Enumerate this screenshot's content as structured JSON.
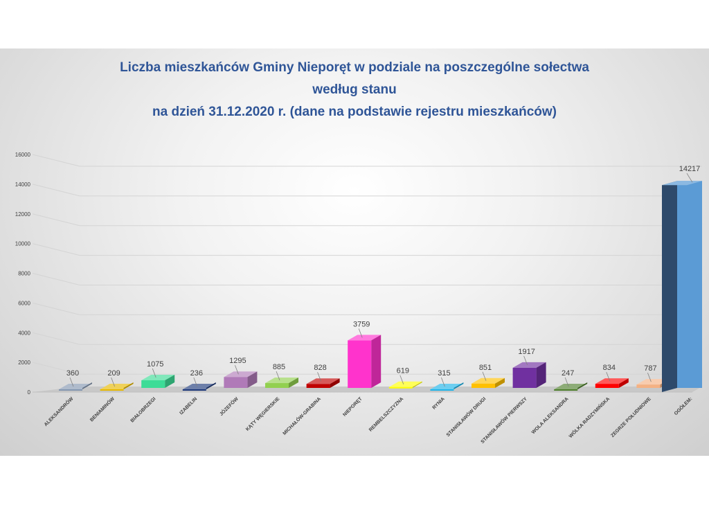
{
  "chart_data": {
    "type": "bar",
    "title_lines": [
      "Liczba mieszkańców Gminy Nieporęt  w podziale na poszczególne sołectwa",
      "według stanu",
      "na dzień 31.12.2020 r. (dane na podstawie rejestru mieszkańców)"
    ],
    "categories": [
      "ALEKSANDRÓW",
      "BENIAMINÓW",
      "BIAŁOBRZEGI",
      "IZABELIN",
      "JÓZEFÓW",
      "KĄTY WĘGIERSKIE",
      "MICHAŁÓW-GRABINA",
      "NIEPORĘT",
      "REMBELSZCZYZNA",
      "RYNIA",
      "STANISŁAWÓW DRUGI",
      "STANISŁAWÓW PIERWSZY",
      "WOLA ALEKSANDRA",
      "WÓLKA RADZYMIŃSKA",
      "ZEGRZE POŁUDNIOWE",
      "OGÓŁEM:"
    ],
    "values": [
      360,
      209,
      1075,
      236,
      1295,
      885,
      828,
      3759,
      619,
      315,
      851,
      1917,
      247,
      834,
      787,
      14217
    ],
    "colors": [
      "#8497b0",
      "#e6b800",
      "#3ddc97",
      "#1f3a7a",
      "#b07ab8",
      "#92d050",
      "#c00000",
      "#ff33cc",
      "#ffff00",
      "#1fb4e8",
      "#ffc000",
      "#7030a0",
      "#4f7f2e",
      "#ff0000",
      "#f4b183",
      "#5b9bd5"
    ],
    "yticks": [
      0,
      2000,
      4000,
      6000,
      8000,
      10000,
      12000,
      14000,
      16000
    ],
    "ylim": [
      0,
      16000
    ],
    "grid": true,
    "legend": "none"
  }
}
